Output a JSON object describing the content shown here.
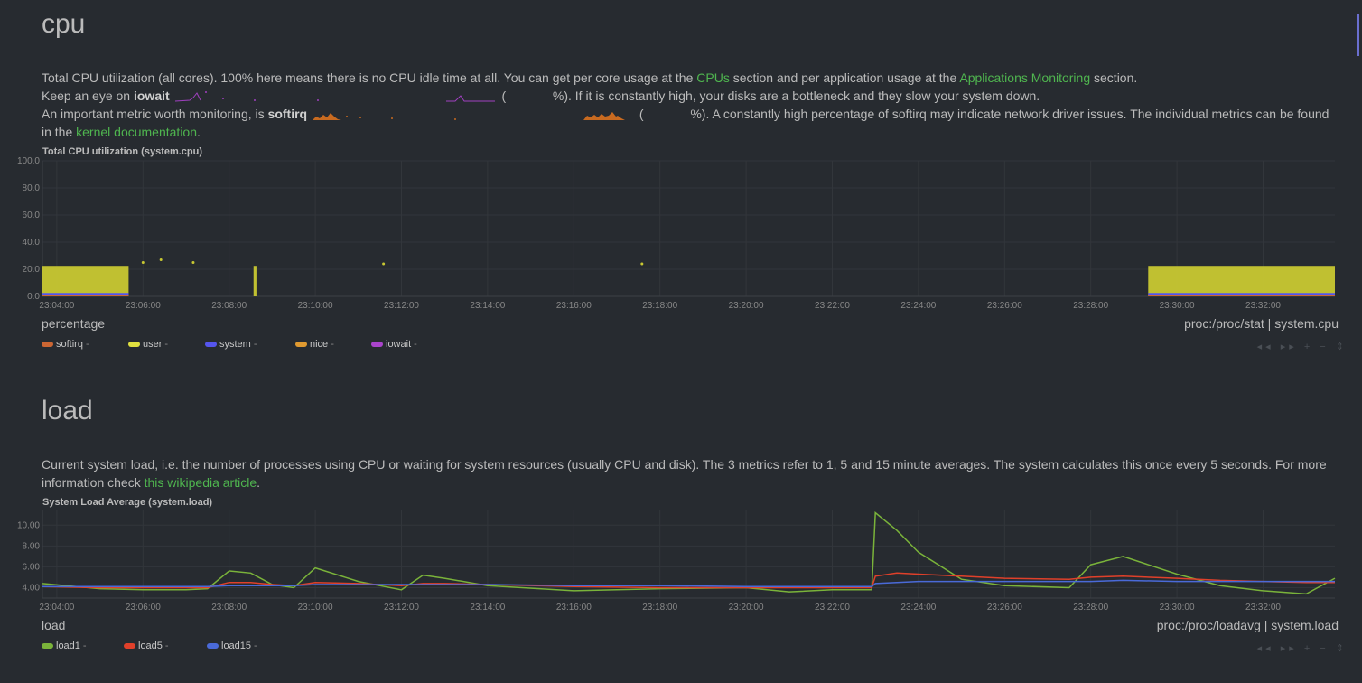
{
  "cpu": {
    "title": "cpu",
    "desc_line1": "Total CPU utilization (all cores). 100% here means there is no CPU idle time at all. You can get per core usage at the",
    "link_cpus": "CPUs",
    "desc_line1_mid": "section and per application usage at the",
    "link_apps": "Applications Monitoring",
    "desc_line1_end": "section.",
    "desc_line2_a": "Keep an eye on",
    "iowait_bold": "iowait",
    "desc_line2_b": "%). If it is constantly high, your disks are a bottleneck and they slow your system down.",
    "desc_line3_a": "An important metric worth monitoring, is",
    "softirq_bold": "softirq",
    "desc_line3_b": "%). A constantly high percentage of softirq may indicate network driver issues. The individual metrics can be found in the",
    "link_kernel": "kernel documentation",
    "desc_line3_end": ".",
    "paren_open": "(",
    "chart_title": "Total CPU utilization (system.cpu)",
    "units": "percentage",
    "source": "proc:/proc/stat | system.cpu",
    "legend": [
      {
        "name": "softirq",
        "color": "#cc6633",
        "value": "-"
      },
      {
        "name": "user",
        "color": "#e0e040",
        "value": "-"
      },
      {
        "name": "system",
        "color": "#5555ee",
        "value": "-"
      },
      {
        "name": "nice",
        "color": "#e09a30",
        "value": "-"
      },
      {
        "name": "iowait",
        "color": "#aa44cc",
        "value": "-"
      }
    ]
  },
  "load": {
    "title": "load",
    "desc_a": "Current system load, i.e. the number of processes using CPU or waiting for system resources (usually CPU and disk). The 3 metrics refer to 1, 5 and 15 minute averages. The system calculates this once every 5 seconds. For more information check",
    "link_wiki": "this wikipedia article",
    "desc_end": ".",
    "chart_title": "System Load Average (system.load)",
    "units": "load",
    "source": "proc:/proc/loadavg | system.load",
    "legend": [
      {
        "name": "load1",
        "color": "#7ab33a",
        "value": "-"
      },
      {
        "name": "load5",
        "color": "#e0402a",
        "value": "-"
      },
      {
        "name": "load15",
        "color": "#4a6ad8",
        "value": "-"
      }
    ]
  },
  "toolbox": {
    "glyphs": "◂◂ ▸▸ + − ⇕"
  },
  "chart_data": [
    {
      "type": "area",
      "title": "Total CPU utilization (system.cpu)",
      "ylabel": "percentage",
      "ylim": [
        0,
        100
      ],
      "yticks": [
        "100.0",
        "80.0",
        "60.0",
        "40.0",
        "20.0",
        "0.0"
      ],
      "x_tick_labels": [
        "23:04:00",
        "23:06:00",
        "23:08:00",
        "23:10:00",
        "23:12:00",
        "23:14:00",
        "23:16:00",
        "23:18:00",
        "23:20:00",
        "23:22:00",
        "23:24:00",
        "23:26:00",
        "23:28:00",
        "23:30:00",
        "23:32:00"
      ],
      "xlim": [
        "23:03:40",
        "23:33:40"
      ],
      "series": [
        {
          "name": "user",
          "color": "#c8c832",
          "segments": [
            {
              "x": [
                "23:03:40",
                "23:05:40"
              ],
              "value": 22
            },
            {
              "x": [
                "23:08:34",
                "23:08:38"
              ],
              "value": 22
            },
            {
              "x": [
                "23:29:20",
                "23:33:40"
              ],
              "value": 22
            }
          ],
          "points": [
            {
              "x": "23:06:00",
              "value": 25
            },
            {
              "x": "23:06:25",
              "value": 27
            },
            {
              "x": "23:07:10",
              "value": 25
            },
            {
              "x": "23:11:35",
              "value": 24
            },
            {
              "x": "23:17:35",
              "value": 24
            }
          ]
        },
        {
          "name": "system",
          "color": "#5555ee",
          "segments": [
            {
              "x": [
                "23:03:40",
                "23:05:40"
              ],
              "value": 2
            },
            {
              "x": [
                "23:29:20",
                "23:33:40"
              ],
              "value": 2
            }
          ]
        },
        {
          "name": "softirq",
          "color": "#cc6633",
          "segments": [
            {
              "x": [
                "23:03:40",
                "23:05:40"
              ],
              "value": 0.5
            },
            {
              "x": [
                "23:29:20",
                "23:33:40"
              ],
              "value": 0.5
            }
          ]
        }
      ]
    },
    {
      "type": "line",
      "title": "System Load Average (system.load)",
      "ylabel": "load",
      "ylim": [
        3,
        11.5
      ],
      "yticks": [
        "10.00",
        "8.00",
        "6.00",
        "4.00"
      ],
      "x_tick_labels": [
        "23:04:00",
        "23:06:00",
        "23:08:00",
        "23:10:00",
        "23:12:00",
        "23:14:00",
        "23:16:00",
        "23:18:00",
        "23:20:00",
        "23:22:00",
        "23:24:00",
        "23:26:00",
        "23:28:00",
        "23:30:00",
        "23:32:00"
      ],
      "xlim": [
        "23:03:40",
        "23:33:40"
      ],
      "x": [
        "23:03:40",
        "23:05:00",
        "23:06:00",
        "23:07:00",
        "23:07:30",
        "23:08:00",
        "23:08:30",
        "23:09:00",
        "23:09:30",
        "23:10:00",
        "23:11:00",
        "23:12:00",
        "23:12:30",
        "23:13:00",
        "23:14:00",
        "23:16:00",
        "23:18:00",
        "23:20:00",
        "23:21:00",
        "23:22:00",
        "23:22:55",
        "23:23:00",
        "23:23:30",
        "23:24:00",
        "23:25:00",
        "23:26:00",
        "23:27:30",
        "23:28:00",
        "23:28:45",
        "23:30:00",
        "23:31:00",
        "23:32:00",
        "23:33:00",
        "23:33:40"
      ],
      "series": [
        {
          "name": "load1",
          "color": "#7ab33a",
          "values": [
            4.4,
            3.9,
            3.8,
            3.8,
            3.9,
            5.6,
            5.4,
            4.3,
            4.0,
            5.9,
            4.6,
            3.8,
            5.2,
            4.9,
            4.2,
            3.7,
            3.9,
            4.0,
            3.6,
            3.8,
            3.8,
            11.2,
            9.5,
            7.4,
            4.8,
            4.2,
            4.0,
            6.2,
            7.0,
            5.3,
            4.2,
            3.7,
            3.4,
            4.9
          ]
        },
        {
          "name": "load5",
          "color": "#e0402a",
          "values": [
            4.1,
            4.0,
            4.0,
            4.0,
            4.0,
            4.5,
            4.5,
            4.3,
            4.2,
            4.5,
            4.4,
            4.2,
            4.4,
            4.4,
            4.3,
            4.1,
            4.0,
            4.0,
            4.0,
            4.0,
            4.0,
            5.1,
            5.4,
            5.3,
            5.1,
            4.9,
            4.8,
            5.0,
            5.1,
            4.9,
            4.7,
            4.6,
            4.5,
            4.5
          ]
        },
        {
          "name": "load15",
          "color": "#4a6ad8",
          "values": [
            4.1,
            4.1,
            4.1,
            4.1,
            4.1,
            4.2,
            4.2,
            4.2,
            4.2,
            4.3,
            4.3,
            4.3,
            4.3,
            4.3,
            4.3,
            4.2,
            4.2,
            4.1,
            4.1,
            4.1,
            4.1,
            4.4,
            4.5,
            4.6,
            4.6,
            4.6,
            4.6,
            4.6,
            4.7,
            4.6,
            4.6,
            4.6,
            4.6,
            4.6
          ]
        }
      ]
    }
  ]
}
